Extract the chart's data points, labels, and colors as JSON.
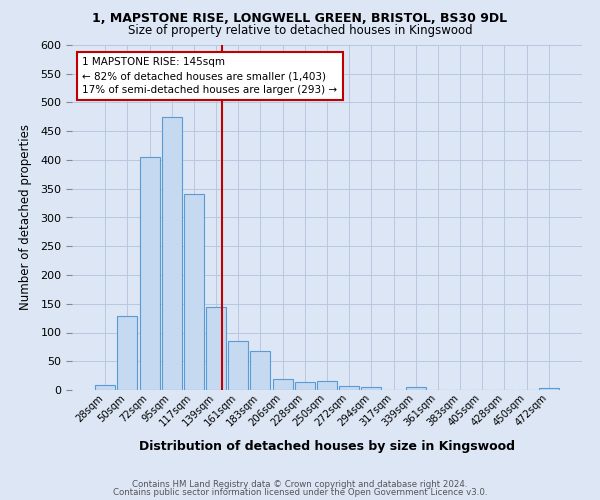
{
  "title1": "1, MAPSTONE RISE, LONGWELL GREEN, BRISTOL, BS30 9DL",
  "title2": "Size of property relative to detached houses in Kingswood",
  "xlabel": "Distribution of detached houses by size in Kingswood",
  "ylabel": "Number of detached properties",
  "categories": [
    "28sqm",
    "50sqm",
    "72sqm",
    "95sqm",
    "117sqm",
    "139sqm",
    "161sqm",
    "183sqm",
    "206sqm",
    "228sqm",
    "250sqm",
    "272sqm",
    "294sqm",
    "317sqm",
    "339sqm",
    "361sqm",
    "383sqm",
    "405sqm",
    "428sqm",
    "450sqm",
    "472sqm"
  ],
  "values": [
    8,
    128,
    405,
    475,
    340,
    145,
    85,
    68,
    20,
    14,
    16,
    7,
    5,
    0,
    5,
    0,
    0,
    0,
    0,
    0,
    4
  ],
  "bar_color": "#c5d9f0",
  "bar_edge_color": "#5b9bd5",
  "subject_line_color": "#c00000",
  "annotation_text": "1 MAPSTONE RISE: 145sqm\n← 82% of detached houses are smaller (1,403)\n17% of semi-detached houses are larger (293) →",
  "annotation_box_color": "#ffffff",
  "annotation_box_edge": "#c00000",
  "ylim": [
    0,
    600
  ],
  "yticks": [
    0,
    50,
    100,
    150,
    200,
    250,
    300,
    350,
    400,
    450,
    500,
    550,
    600
  ],
  "footer1": "Contains HM Land Registry data © Crown copyright and database right 2024.",
  "footer2": "Contains public sector information licensed under the Open Government Licence v3.0.",
  "bg_color": "#dce6f5",
  "plot_bg_color": "#dce6f5"
}
